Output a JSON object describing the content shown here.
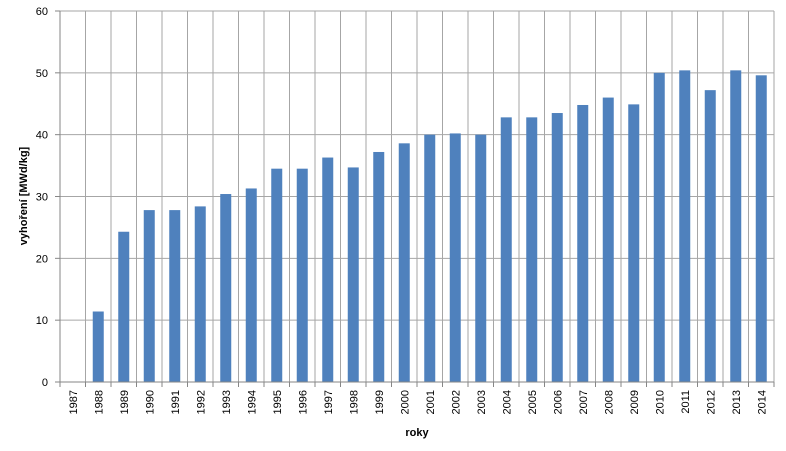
{
  "chart_data": {
    "type": "bar",
    "title": "",
    "xlabel": "roky",
    "ylabel": "vyhoření [MWd/kg]",
    "ylim": [
      0,
      60
    ],
    "yticks": [
      0,
      10,
      20,
      30,
      40,
      50,
      60
    ],
    "grid": true,
    "legend": "none",
    "bar_color": "#4f81bd",
    "grid_color": "#a6a6a6",
    "categories": [
      "1987",
      "1988",
      "1989",
      "1990",
      "1991",
      "1992",
      "1993",
      "1994",
      "1995",
      "1996",
      "1997",
      "1998",
      "1999",
      "2000",
      "2001",
      "2002",
      "2003",
      "2004",
      "2005",
      "2006",
      "2007",
      "2008",
      "2009",
      "2010",
      "2011",
      "2012",
      "2013",
      "2014"
    ],
    "values": [
      0,
      11.4,
      24.3,
      27.8,
      27.8,
      28.4,
      30.4,
      31.3,
      34.5,
      34.5,
      36.3,
      34.7,
      37.2,
      38.6,
      40.0,
      40.2,
      40.0,
      42.8,
      42.8,
      43.5,
      44.8,
      46.0,
      44.9,
      50.0,
      50.4,
      47.2,
      50.4,
      49.6
    ]
  }
}
